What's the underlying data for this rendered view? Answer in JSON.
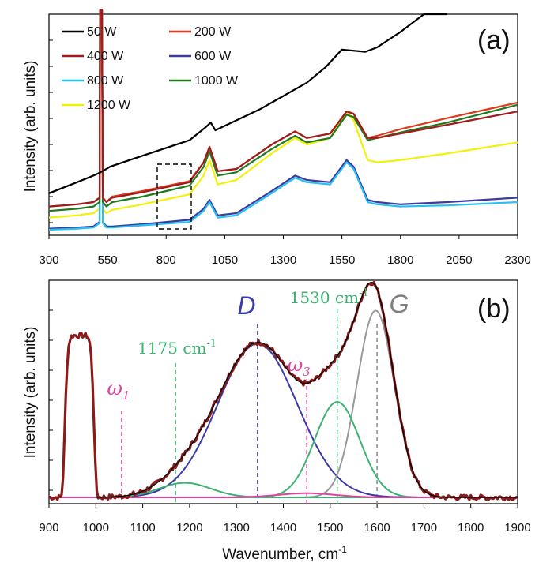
{
  "chart_data": [
    {
      "panel": "(a)",
      "type": "line",
      "ylabel": "Intensity (arb. units)",
      "xticks": [
        "300",
        "550",
        "800",
        "1050",
        "1300",
        "1550",
        "1800",
        "2050",
        "2300"
      ],
      "xlim": [
        300,
        2300
      ],
      "series": [
        {
          "name": "50 W",
          "color": "#000000",
          "x": [
            300,
            420,
            490,
            520,
            545,
            560,
            700,
            900,
            970,
            990,
            1010,
            1200,
            1400,
            1480,
            1550,
            1650,
            1700,
            1800,
            1900,
            2000
          ],
          "y": [
            0.19,
            0.24,
            0.27,
            0.285,
            0.3,
            0.31,
            0.36,
            0.43,
            0.49,
            0.51,
            0.475,
            0.57,
            0.69,
            0.76,
            0.84,
            0.83,
            0.85,
            0.92,
            1.0,
            1.09
          ]
        },
        {
          "name": "200 W",
          "color": "#e03a1e",
          "x": [
            300,
            420,
            490,
            520,
            545,
            570,
            700,
            900,
            960,
            985,
            1020,
            1100,
            1250,
            1350,
            1400,
            1500,
            1570,
            1600,
            1660,
            1700,
            1800,
            2000,
            2300
          ],
          "y": [
            0.13,
            0.14,
            0.15,
            0.8,
            0.15,
            0.175,
            0.2,
            0.245,
            0.33,
            0.4,
            0.29,
            0.3,
            0.41,
            0.47,
            0.44,
            0.46,
            0.56,
            0.55,
            0.44,
            0.45,
            0.48,
            0.53,
            0.6
          ]
        },
        {
          "name": "400 W",
          "color": "#a01c1c",
          "x": [
            300,
            420,
            490,
            520,
            545,
            570,
            700,
            900,
            960,
            985,
            1020,
            1100,
            1250,
            1350,
            1400,
            1500,
            1570,
            1600,
            1660,
            1700,
            1800,
            2000,
            2300
          ],
          "y": [
            0.13,
            0.14,
            0.15,
            0.8,
            0.15,
            0.17,
            0.195,
            0.24,
            0.33,
            0.4,
            0.29,
            0.3,
            0.41,
            0.47,
            0.44,
            0.46,
            0.56,
            0.55,
            0.44,
            0.44,
            0.46,
            0.5,
            0.56
          ]
        },
        {
          "name": "600 W",
          "color": "#3b3ba0",
          "x": [
            300,
            420,
            490,
            520,
            545,
            570,
            700,
            900,
            960,
            985,
            1020,
            1100,
            1250,
            1350,
            1400,
            1500,
            1570,
            1600,
            1660,
            1700,
            1800,
            2000,
            2300
          ],
          "y": [
            0.03,
            0.035,
            0.04,
            0.8,
            0.04,
            0.04,
            0.05,
            0.07,
            0.12,
            0.16,
            0.09,
            0.1,
            0.2,
            0.27,
            0.25,
            0.24,
            0.34,
            0.31,
            0.16,
            0.15,
            0.14,
            0.15,
            0.17
          ]
        },
        {
          "name": "800 W",
          "color": "#29bff0",
          "x": [
            300,
            420,
            490,
            520,
            545,
            570,
            700,
            900,
            960,
            985,
            1020,
            1100,
            1250,
            1350,
            1400,
            1500,
            1570,
            1600,
            1660,
            1700,
            1800,
            2000,
            2300
          ],
          "y": [
            0.025,
            0.03,
            0.035,
            0.8,
            0.035,
            0.035,
            0.045,
            0.06,
            0.11,
            0.15,
            0.08,
            0.09,
            0.19,
            0.26,
            0.24,
            0.23,
            0.33,
            0.3,
            0.15,
            0.14,
            0.13,
            0.135,
            0.15
          ]
        },
        {
          "name": "1000 W",
          "color": "#1f7a1f",
          "x": [
            300,
            420,
            490,
            520,
            545,
            570,
            700,
            900,
            960,
            985,
            1020,
            1100,
            1250,
            1350,
            1400,
            1500,
            1570,
            1600,
            1660,
            1700,
            1800,
            2000,
            2300
          ],
          "y": [
            0.11,
            0.12,
            0.13,
            0.8,
            0.13,
            0.15,
            0.175,
            0.225,
            0.31,
            0.38,
            0.27,
            0.285,
            0.39,
            0.45,
            0.42,
            0.44,
            0.545,
            0.535,
            0.43,
            0.44,
            0.465,
            0.51,
            0.59
          ]
        },
        {
          "name": "1200 W",
          "color": "#f5f00a",
          "x": [
            300,
            420,
            490,
            520,
            545,
            570,
            700,
            900,
            960,
            985,
            1020,
            1100,
            1250,
            1350,
            1400,
            1500,
            1570,
            1600,
            1660,
            1700,
            1800,
            2000,
            2300
          ],
          "y": [
            0.08,
            0.09,
            0.1,
            0.8,
            0.1,
            0.115,
            0.14,
            0.185,
            0.27,
            0.34,
            0.23,
            0.25,
            0.37,
            0.44,
            0.41,
            0.44,
            0.56,
            0.52,
            0.34,
            0.33,
            0.34,
            0.37,
            0.42
          ]
        }
      ]
    },
    {
      "panel": "(b)",
      "type": "line",
      "xlabel": "Wavenumber, cm",
      "xlabel_sup": "-1",
      "ylabel": "Intensity (arb. units)",
      "xticks": [
        "900",
        "1000",
        "1100",
        "1200",
        "1300",
        "1400",
        "1500",
        "1600",
        "1700",
        "1800",
        "1900"
      ],
      "xlim": [
        900,
        1900
      ],
      "annotations": [
        {
          "text": "ω",
          "sub": "1",
          "x": 1055,
          "color": "#e040a0"
        },
        {
          "text": "1175 cm",
          "sup": "-1",
          "x": 1170,
          "color": "#3cb371"
        },
        {
          "text": "D",
          "x": 1345,
          "color": "#3a3aa8"
        },
        {
          "text": "ω",
          "sub": "3",
          "x": 1450,
          "color": "#e040a0"
        },
        {
          "text": "1530 cm",
          "sup": "-1",
          "x": 1515,
          "color": "#3cb371"
        },
        {
          "text": "G",
          "x": 1600,
          "color": "#808080"
        }
      ],
      "components": [
        {
          "name": "D",
          "center": 1345,
          "height": 0.74,
          "width": 85,
          "color": "#3a3aa8"
        },
        {
          "name": "G",
          "center": 1597,
          "height": 0.9,
          "width": 40,
          "color": "#999999"
        },
        {
          "name": "1530",
          "center": 1515,
          "height": 0.46,
          "width": 48,
          "color": "#3cb371"
        },
        {
          "name": "1175",
          "center": 1190,
          "height": 0.07,
          "width": 55,
          "color": "#3cb371"
        },
        {
          "name": "w3",
          "center": 1450,
          "height": 0.02,
          "width": 60,
          "color": "#e040a0"
        }
      ],
      "measured_color": "#8b1a1a",
      "fit_color": "#000000"
    }
  ]
}
